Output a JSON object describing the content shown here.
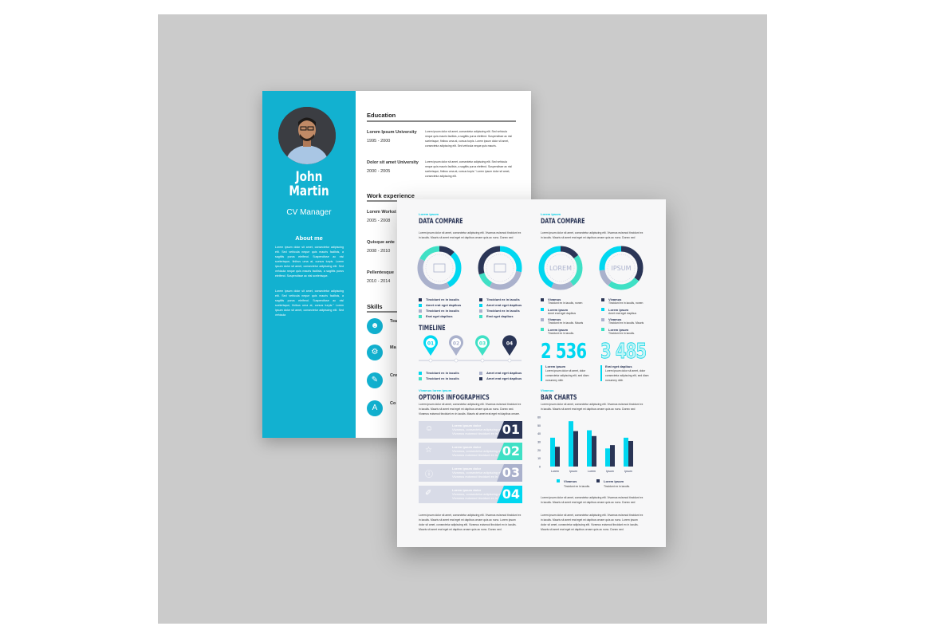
{
  "colors": {
    "teal_sidebar": "#12b1d0",
    "cyan": "#00d7f0",
    "dark": "#2a3556",
    "grey": "#aab1cc",
    "mint": "#3fe0c5"
  },
  "cv": {
    "first_name": "John",
    "last_name": "Martin",
    "role": "CV Manager",
    "about_title": "About me",
    "about_p1": "Lorem ipsum dolor sit amet, consectetur adipiscing elit. Sed vehicula neque quis mauris facilisis, a sagittis purus eleifend. Suspendisse ac nisl scelerisque, finibus urna at, cursus turpis. Lorem ipsum dolor sit amet, consectetur adipiscing elit. Sed vehicula neque quis mauris facilisis, a sagittis purus eleifend. Suspendisse ac nisl scelerisque.",
    "about_p2": "Lorem ipsum dolor sit amet, consectetur adipiscing elit. Sed vehicula neque quis mauris facilisis, a sagittis purus eleifend. Suspendisse ac nisl scelerisque, finibus urna at, cursus turpis.\" Lorem ipsum dolor sit amet, consectetur adipiscing elit. Sed vehicula",
    "education_title": "Education",
    "education": [
      {
        "name": "Lorem Ipsum University",
        "years": "1995 - 2000",
        "desc": "Lorem ipsum dolor sit amet, consectetur adipiscing elit. Sed vehicula neque quis mauris facilisis, a sagittis purus eleifend. Suspendisse ac nisl scelerisque, finibus urna at, cursus turpis. Lorem ipsum dolor sit amet, consectetur adipiscing elit. Sed vehicula neque quis mauris."
      },
      {
        "name": "Dolor sit amet University",
        "years": "2000 - 2005",
        "desc": "Lorem ipsum dolor sit amet, consectetur adipiscing elit. Sed vehicula neque quis mauris facilisis, a sagittis purus eleifend. Suspendisse ac nisl scelerisque, finibus urna at, cursus turpis.\" Lorem ipsum dolor sit amet, consectetur adipiscing elit."
      }
    ],
    "work_title": "Work experience",
    "work": [
      {
        "name": "Lorem Workst",
        "years": "2005 - 2008"
      },
      {
        "name": "Quisque ante",
        "years": "2008 - 2010"
      },
      {
        "name": "Pellentesque",
        "years": "2010 - 2014"
      }
    ],
    "skills_title": "Skills",
    "skills": [
      {
        "name": "Tea",
        "icon": "team-icon"
      },
      {
        "name": "Ma",
        "icon": "gears-icon"
      },
      {
        "name": "Cre",
        "icon": "pen-icon"
      },
      {
        "name": "Co",
        "icon": "font-icon"
      }
    ]
  },
  "info": {
    "dc1": {
      "kicker": "Lorem ipsum",
      "title": "DATA COMPARE",
      "p": "Lorem ipsum dolor sit amet, consectetur adipiscing elit. Vivamus euismod tincidunt ex in iaculis. Mauris sit amet erat eget mi dapibus ornare quis ac nunc. Donec sed"
    },
    "dc2": {
      "kicker": "Lorem ipsum",
      "title": "DATA COMPARE",
      "p": "Lorem ipsum dolor sit amet, consectetur adipiscing elit. Vivamus euismod tincidunt ex in iaculis. Mauris sit amet erat eget mi dapibus ornare quis ac nunc. Donec sed"
    },
    "donuts": [
      {
        "label": "",
        "icon": "laptop-icon",
        "segments": [
          {
            "c": "dark",
            "v": 0.12
          },
          {
            "c": "cyan",
            "v": 0.3
          },
          {
            "c": "grey",
            "v": 0.4
          },
          {
            "c": "mint",
            "v": 0.18
          }
        ]
      },
      {
        "label": "",
        "icon": "phone-icon",
        "segments": [
          {
            "c": "cyan",
            "v": 0.28
          },
          {
            "c": "grey",
            "v": 0.3
          },
          {
            "c": "mint",
            "v": 0.12
          },
          {
            "c": "dark",
            "v": 0.3
          }
        ]
      },
      {
        "label": "LOREM",
        "segments": [
          {
            "c": "dark",
            "v": 0.15
          },
          {
            "c": "mint",
            "v": 0.25
          },
          {
            "c": "grey",
            "v": 0.17
          },
          {
            "c": "cyan",
            "v": 0.43
          }
        ]
      },
      {
        "label": "IPSUM",
        "segments": [
          {
            "c": "dark",
            "v": 0.35
          },
          {
            "c": "mint",
            "v": 0.25
          },
          {
            "c": "grey",
            "v": 0.13
          },
          {
            "c": "cyan",
            "v": 0.27
          }
        ]
      }
    ],
    "legend_left": [
      [
        {
          "c": "dark",
          "t": "Tincidunt ex in iaculis"
        },
        {
          "c": "cyan",
          "t": "Amet erat eget dapibus"
        },
        {
          "c": "grey",
          "t": "Tincidunt ex in iaculis"
        },
        {
          "c": "mint",
          "t": "Erat eget dapibus"
        }
      ],
      [
        {
          "c": "dark",
          "t": "Tincidunt ex in iaculis"
        },
        {
          "c": "cyan",
          "t": "Amet erat eget dapibus"
        },
        {
          "c": "grey",
          "t": "Tincidunt ex in iaculis"
        },
        {
          "c": "mint",
          "t": "Erat eget dapibus"
        }
      ]
    ],
    "legend_right": [
      [
        {
          "c": "dark",
          "t": "Vivamus",
          "s": "Tincidunt ex in iaculis, nonen"
        },
        {
          "c": "cyan",
          "t": "Lorem ipsum",
          "s": "Amet erat eget dapibus"
        },
        {
          "c": "grey",
          "t": "Vivamus",
          "s": "Tincidunt ex in iaculis. Mauris"
        },
        {
          "c": "mint",
          "t": "Lorem ipsum",
          "s": "Tincidunt ex in iaculis."
        }
      ],
      [
        {
          "c": "dark",
          "t": "Vivamus",
          "s": "Tincidunt ex in iaculis, nonen"
        },
        {
          "c": "cyan",
          "t": "Lorem ipsum",
          "s": "Amet erat eget dapibus"
        },
        {
          "c": "grey",
          "t": "Vivamus",
          "s": "Tincidunt ex in iaculis. Mauris"
        },
        {
          "c": "mint",
          "t": "Lorem ipsum",
          "s": "Tincidunt ex in iaculis."
        }
      ]
    ],
    "timeline": {
      "title": "TIMELINE",
      "pins": [
        {
          "n": "01",
          "c": "cyan"
        },
        {
          "n": "02",
          "c": "grey"
        },
        {
          "n": "03",
          "c": "mint"
        },
        {
          "n": "04",
          "c": "dark"
        }
      ],
      "legend": [
        {
          "c": "cyan",
          "t": "Tincidunt ex in iaculis"
        },
        {
          "c": "mint",
          "t": "Tincidunt ex in iaculis"
        },
        {
          "c": "grey",
          "t": "Amet erat eget dapibus"
        },
        {
          "c": "dark",
          "t": "Amet erat eget dapibus"
        }
      ]
    },
    "stat1": {
      "value": "2 536",
      "title": "Lorem ipsum",
      "p": "Lorem ipsum dolor sit amet, dolor consectetur adipiscing elit, sed diam nonummy nibh"
    },
    "stat2": {
      "value": "3 485",
      "title": "Erat eget dapibus",
      "p": "Lorem ipsum dolor sit amet, dolor consectetur adipiscing elit, sed diam nonummy nibh"
    },
    "options": {
      "kicker": "Vivamus lorem ipsum",
      "title": "OPTIONS INFOGRAPHICS",
      "p": "Lorem ipsum dolor sit amet, consectetur adipiscing elit. Vivamus euismod tincidunt ex in iaculis. Mauris sit amet erat eget mi dapibus ornare quis ac nunc. Donec sed. Vivamus euismod tincidunt ex in iaculis. Mauris sit amet erat eget mi dapibus ornare.",
      "rows": [
        {
          "n": "01",
          "c": "dark",
          "icon": "user-icon",
          "t": "Lorem ipsum dolor",
          "s": "Vivamus, consectetur adipiscing elit. Vivamus euismod tincidunt ex in."
        },
        {
          "n": "02",
          "c": "mint",
          "icon": "star-icon",
          "t": "Lorem ipsum dolor",
          "s": "Vivamus, consectetur adipiscing elit. Vivamus euismod tincidunt ex in."
        },
        {
          "n": "03",
          "c": "grey",
          "icon": "info-icon",
          "t": "Lorem ipsum dolor",
          "s": "Vivamus, consectetur adipiscing elit. Vivamus euismod tincidunt ex in."
        },
        {
          "n": "04",
          "c": "cyan",
          "icon": "tag-icon",
          "t": "Lorem ipsum dolor",
          "s": "Vivamus, consectetur adipiscing elit. Vivamus euismod tincidunt ex in."
        }
      ],
      "bottom": "Lorem ipsum dolor sit amet, consectetur adipiscing elit. Vivamus euismod tincidunt ex in iaculis. Mauris sit amet erat eget mi dapibus ornare quis ac nunc. Lorem ipsum dolor sit amet, consectetur adipiscing elit. Vivamus euismod tincidunt ex in iaculis. Mauris sit amet erat eget mi dapibus ornare quis ac nunc. Donec sed."
    },
    "bars": {
      "kicker": "Vivamus",
      "title": "BAR CHARTS",
      "p": "Lorem ipsum dolor sit amet, consectetur adipiscing elit. Vivamus euismod tincidunt ex in iaculis. Mauris sit amet erat eget mi dapibus ornare quis ac nunc. Donec sed",
      "p2": "Lorem ipsum dolor sit amet, consectetur adipiscing elit. Vivamus euismod tincidunt ex in iaculis. Mauris sit amet erat eget mi dapibus ornare quis ac nunc. Donec sed",
      "p3": "Lorem ipsum dolor sit amet, consectetur adipiscing elit. Vivamus euismod tincidunt ex in iaculis. Mauris sit amet erat eget mi dapibus ornare quis ac nunc. Lorem ipsum dolor sit amet, consectetur adipiscing elit. Vivamus euismod tincidunt ex in iaculis. Mauris sit amet erat eget mi dapibus ornare quis ac nunc. Donec sed."
    }
  },
  "chart_data": {
    "type": "bar",
    "categories": [
      "Lorem",
      "Ipsum",
      "Lorem",
      "Ipsum",
      "Ipsum"
    ],
    "ylim": [
      0,
      60
    ],
    "yticks": [
      0,
      10,
      20,
      30,
      40,
      50,
      60
    ],
    "series": [
      {
        "name": "Vivamus",
        "sub": "Tincidunt ex in iaculis.",
        "color": "#00d7f0",
        "values": [
          35,
          55,
          44,
          22,
          35
        ]
      },
      {
        "name": "Lorem ipsum",
        "sub": "Tincidunt ex in iaculis.",
        "color": "#2a3556",
        "values": [
          24,
          43,
          37,
          26,
          31
        ]
      }
    ]
  }
}
